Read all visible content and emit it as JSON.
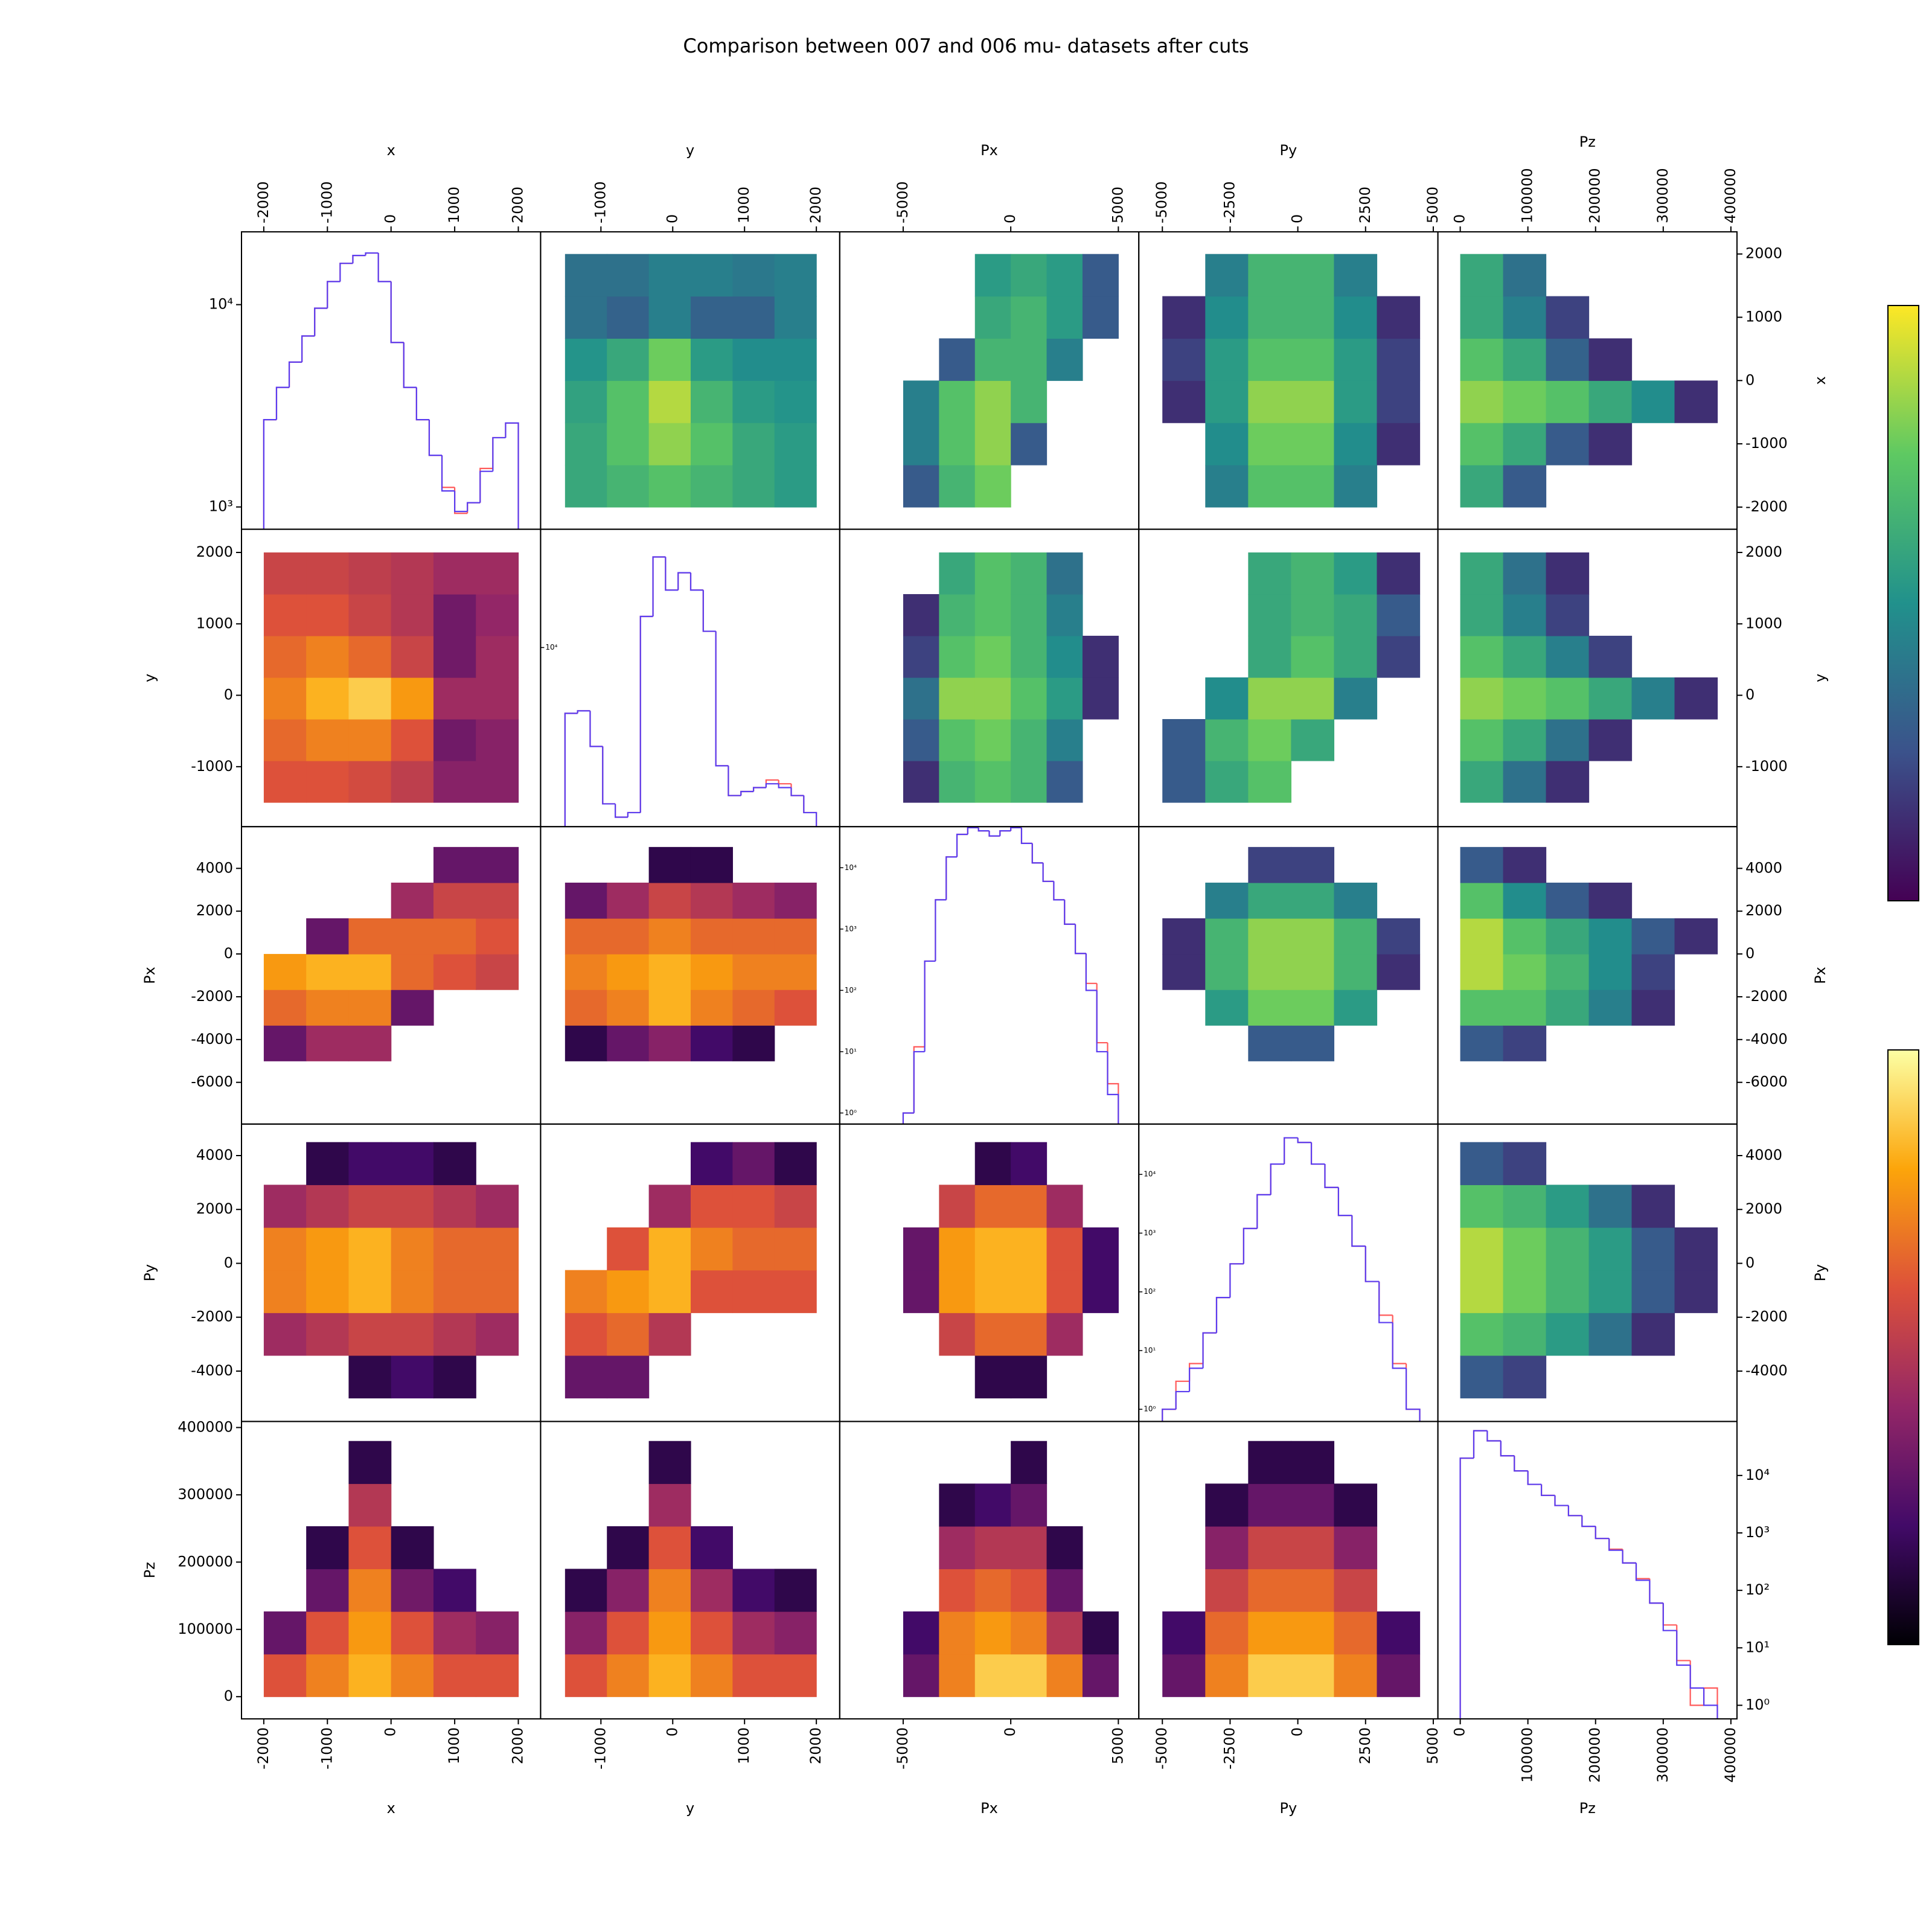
{
  "chart_data": {
    "type": "corner",
    "title": "Comparison between 007 and 006 mu- datasets after cuts",
    "upper_cmap": "viridis",
    "lower_cmap": "inferno",
    "clim": [
      0.5,
      4
    ],
    "variables": [
      {
        "name": "x",
        "lim": [
          -2350,
          2350
        ],
        "xticks": [
          -2000,
          -1000,
          0,
          1000,
          2000
        ],
        "yticks": [
          -2000,
          -1000,
          0,
          1000,
          2000
        ],
        "hist_range": [
          -2000,
          2000
        ]
      },
      {
        "name": "y",
        "lim": [
          -1840,
          2325
        ],
        "xticks": [
          -1000,
          0,
          1000,
          2000
        ],
        "yticks": [
          -1000,
          0,
          1000,
          2000
        ],
        "hist_range": [
          -1500,
          2000
        ]
      },
      {
        "name": "Px",
        "lim": [
          -7950,
          5950
        ],
        "xticks": [
          -5000,
          0,
          5000
        ],
        "yticks": [
          -6000,
          -4000,
          -2000,
          0,
          2000,
          4000
        ],
        "hist_range": [
          -5000,
          5000
        ]
      },
      {
        "name": "Py",
        "lim": [
          -5870,
          5170
        ],
        "xticks": [
          -5000,
          -2500,
          0,
          2500,
          5000
        ],
        "yticks": [
          -4000,
          -2000,
          0,
          2000,
          4000
        ],
        "hist_range": [
          -5000,
          4500
        ]
      },
      {
        "name": "Pz",
        "lim": [
          -33000,
          409000
        ],
        "xticks": [
          0,
          100000,
          200000,
          300000,
          400000
        ],
        "yticks": [
          0,
          100000,
          200000,
          300000,
          400000
        ],
        "hist_range": [
          0,
          380000
        ]
      }
    ],
    "diagonal": [
      {
        "log": true,
        "ylim": [
          776,
          22900
        ],
        "yticks": [
          {
            "value": 1000,
            "label": "10³"
          },
          {
            "value": 10000,
            "label": "10⁴"
          }
        ],
        "bins": [
          -2000,
          -1800,
          -1600,
          -1400,
          -1200,
          -1000,
          -800,
          -600,
          -400,
          -200,
          0,
          200,
          400,
          600,
          800,
          1000,
          1200,
          1400,
          1600,
          1800,
          2000
        ],
        "series": [
          {
            "color": "#ff5a5a",
            "values": [
              2700,
              3900,
              5200,
              7000,
              9600,
              13000,
              16000,
              17500,
              18000,
              13000,
              6500,
              3900,
              2700,
              1800,
              1250,
              930,
              1050,
              1550,
              2200,
              2600
            ]
          },
          {
            "color": "#5a3cf0",
            "values": [
              2700,
              3900,
              5200,
              7000,
              9600,
              13000,
              16000,
              17500,
              18000,
              13000,
              6500,
              3900,
              2700,
              1800,
              1200,
              950,
              1050,
              1500,
              2200,
              2600
            ]
          }
        ]
      },
      {
        "log": true,
        "ylim": [
          3500,
          20000
        ],
        "yticks": [
          {
            "value": 10000,
            "label": "10⁴"
          }
        ],
        "bins": [
          -1500,
          -1325,
          -1150,
          -975,
          -800,
          -625,
          -450,
          -275,
          -100,
          75,
          250,
          425,
          600,
          775,
          950,
          1125,
          1300,
          1475,
          1650,
          1825,
          2000
        ],
        "series": [
          {
            "color": "#ff5a5a",
            "values": [
              6800,
              6900,
              5600,
              4000,
              3700,
              3800,
              12000,
              17000,
              14000,
              15500,
              14000,
              11000,
              5000,
              4200,
              4300,
              4400,
              4600,
              4500,
              4200,
              3800
            ]
          },
          {
            "color": "#5a3cf0",
            "values": [
              6800,
              6900,
              5600,
              4000,
              3700,
              3800,
              12000,
              17000,
              14000,
              15500,
              14000,
              11000,
              5000,
              4200,
              4300,
              4400,
              4500,
              4400,
              4200,
              3800
            ]
          }
        ]
      },
      {
        "log": true,
        "ylim": [
          0.66,
          46800
        ],
        "yticks": [
          {
            "value": 1,
            "label": "10⁰"
          },
          {
            "value": 10,
            "label": "10¹"
          },
          {
            "value": 100,
            "label": "10²"
          },
          {
            "value": 1000,
            "label": "10³"
          },
          {
            "value": 10000,
            "label": "10⁴"
          }
        ],
        "bins": [
          -5000,
          -4500,
          -4000,
          -3500,
          -3000,
          -2500,
          -2000,
          -1500,
          -1000,
          -500,
          0,
          500,
          1000,
          1500,
          2000,
          2500,
          3000,
          3500,
          4000,
          4500,
          5000
        ],
        "series": [
          {
            "color": "#ff5a5a",
            "values": [
              1,
              12,
              300,
              3000,
              15000,
              35000,
              45000,
              40000,
              33000,
              40000,
              45000,
              25000,
              12000,
              6000,
              3000,
              1200,
              400,
              130,
              14,
              3
            ]
          },
          {
            "color": "#5a3cf0",
            "values": [
              1,
              10,
              300,
              3000,
              15000,
              35000,
              45000,
              40000,
              33000,
              40000,
              45000,
              25000,
              12000,
              6000,
              3000,
              1200,
              400,
              100,
              10,
              2
            ]
          }
        ]
      },
      {
        "log": true,
        "ylim": [
          0.62,
          72000
        ],
        "yticks": [
          {
            "value": 1,
            "label": "10⁰"
          },
          {
            "value": 10,
            "label": "10¹"
          },
          {
            "value": 100,
            "label": "10²"
          },
          {
            "value": 1000,
            "label": "10³"
          },
          {
            "value": 10000,
            "label": "10⁴"
          }
        ],
        "bins": [
          -5000,
          -4500,
          -4000,
          -3500,
          -3000,
          -2500,
          -2000,
          -1500,
          -1000,
          -500,
          0,
          500,
          1000,
          1500,
          2000,
          2500,
          3000,
          3500,
          4000,
          4500
        ],
        "series": [
          {
            "color": "#ff5a5a",
            "values": [
              1,
              3,
              6,
              20,
              80,
              300,
              1200,
              4500,
              15000,
              42000,
              35000,
              15000,
              6000,
              2000,
              600,
              150,
              40,
              6,
              1
            ]
          },
          {
            "color": "#5a3cf0",
            "values": [
              1,
              2,
              5,
              20,
              80,
              300,
              1200,
              4500,
              15000,
              42000,
              35000,
              15000,
              6000,
              2000,
              600,
              150,
              30,
              5,
              1
            ]
          }
        ]
      },
      {
        "log": true,
        "ylim": [
          0.58,
          87000
        ],
        "yticks": [
          {
            "value": 1,
            "label": "10⁰"
          },
          {
            "value": 10,
            "label": "10¹"
          },
          {
            "value": 100,
            "label": "10²"
          },
          {
            "value": 1000,
            "label": "10³"
          },
          {
            "value": 10000,
            "label": "10⁴"
          }
        ],
        "bins": [
          0,
          20000,
          40000,
          60000,
          80000,
          100000,
          120000,
          140000,
          160000,
          180000,
          200000,
          220000,
          240000,
          260000,
          280000,
          300000,
          320000,
          340000,
          360000,
          380000
        ],
        "series": [
          {
            "color": "#ff5a5a",
            "values": [
              20000,
              60000,
              40000,
              22000,
              12000,
              7000,
              4500,
              3000,
              2000,
              1300,
              800,
              520,
              300,
              160,
              60,
              25,
              6,
              1,
              2
            ]
          },
          {
            "color": "#5a3cf0",
            "values": [
              20000,
              60000,
              40000,
              22000,
              12000,
              7000,
              4500,
              3000,
              2000,
              1300,
              800,
              500,
              300,
              150,
              60,
              20,
              5,
              2,
              1
            ]
          }
        ]
      }
    ],
    "pairs": [
      {
        "a": 0,
        "b": 1,
        "density": [
          [
            2.6,
            2.6,
            2.5,
            2.3,
            1.8,
            1.8
          ],
          [
            2.8,
            3.0,
            3.0,
            2.6,
            1.6,
            1.8
          ],
          [
            3.0,
            3.4,
            3.6,
            3.2,
            2.0,
            2.0
          ],
          [
            2.8,
            3.0,
            2.8,
            2.4,
            1.6,
            2.0
          ],
          [
            2.6,
            2.6,
            2.4,
            2.2,
            1.6,
            1.9
          ],
          [
            2.4,
            2.4,
            2.3,
            2.2,
            2.0,
            2.0
          ]
        ]
      },
      {
        "a": 0,
        "b": 2,
        "density": [
          [
            1.5,
            2.0,
            2.0,
            null,
            null,
            null
          ],
          [
            2.8,
            3.0,
            3.0,
            1.5,
            null,
            null
          ],
          [
            3.2,
            3.4,
            3.4,
            2.8,
            2.6,
            2.4
          ],
          [
            null,
            1.5,
            2.8,
            2.8,
            2.8,
            2.6
          ],
          [
            null,
            null,
            null,
            2.0,
            2.4,
            2.4
          ],
          [
            null,
            null,
            null,
            null,
            1.5,
            1.5
          ]
        ]
      },
      {
        "a": 0,
        "b": 3,
        "density": [
          [
            null,
            null,
            1.0,
            1.2,
            1.0,
            null
          ],
          [
            2.0,
            2.2,
            2.4,
            2.4,
            2.2,
            2.0
          ],
          [
            3.0,
            3.2,
            3.4,
            3.0,
            2.8,
            2.8
          ],
          [
            3.0,
            3.2,
            3.4,
            3.0,
            2.8,
            2.8
          ],
          [
            2.0,
            2.2,
            2.4,
            2.4,
            2.2,
            2.0
          ],
          [
            null,
            1.0,
            1.2,
            1.2,
            1.0,
            null
          ]
        ]
      },
      {
        "a": 0,
        "b": 4,
        "density": [
          [
            2.6,
            3.0,
            3.4,
            3.0,
            2.6,
            2.6
          ],
          [
            1.5,
            2.6,
            3.2,
            2.6,
            2.0,
            1.8
          ],
          [
            null,
            1.5,
            3.0,
            1.6,
            1.2,
            null
          ],
          [
            null,
            1.0,
            2.6,
            1.0,
            null,
            null
          ],
          [
            null,
            null,
            2.2,
            null,
            null,
            null
          ],
          [
            null,
            null,
            1.0,
            null,
            null,
            null
          ]
        ]
      },
      {
        "a": 1,
        "b": 2,
        "density": [
          [
            1.0,
            1.5,
            1.8,
            1.2,
            1.0,
            null
          ],
          [
            2.8,
            3.0,
            3.4,
            3.0,
            2.8,
            2.6
          ],
          [
            3.0,
            3.2,
            3.4,
            3.2,
            3.0,
            3.0
          ],
          [
            2.8,
            2.8,
            3.0,
            2.8,
            2.8,
            2.8
          ],
          [
            1.5,
            2.0,
            2.4,
            2.2,
            2.0,
            1.8
          ],
          [
            null,
            null,
            1.0,
            1.0,
            null,
            null
          ]
        ]
      },
      {
        "a": 1,
        "b": 3,
        "density": [
          [
            1.5,
            1.5,
            null,
            null,
            null,
            null
          ],
          [
            2.6,
            2.8,
            2.2,
            null,
            null,
            null
          ],
          [
            3.0,
            3.2,
            3.4,
            2.6,
            2.6,
            2.6
          ],
          [
            null,
            2.6,
            3.4,
            3.0,
            2.8,
            2.8
          ],
          [
            null,
            null,
            2.0,
            2.6,
            2.6,
            2.4
          ],
          [
            null,
            null,
            null,
            1.2,
            1.5,
            1.0
          ]
        ]
      },
      {
        "a": 1,
        "b": 4,
        "density": [
          [
            2.6,
            3.0,
            3.4,
            3.0,
            2.6,
            2.6
          ],
          [
            1.8,
            2.6,
            3.2,
            2.6,
            2.0,
            1.8
          ],
          [
            1.0,
            1.8,
            3.0,
            2.0,
            1.2,
            1.0
          ],
          [
            null,
            1.0,
            2.6,
            1.2,
            null,
            null
          ],
          [
            null,
            null,
            2.0,
            null,
            null,
            null
          ],
          [
            null,
            null,
            1.0,
            null,
            null,
            null
          ]
        ]
      },
      {
        "a": 2,
        "b": 3,
        "density": [
          [
            null,
            null,
            1.0,
            1.0,
            null,
            null
          ],
          [
            null,
            2.4,
            2.8,
            2.8,
            2.0,
            null
          ],
          [
            1.5,
            3.2,
            3.4,
            3.4,
            2.6,
            1.2
          ],
          [
            1.5,
            3.2,
            3.4,
            3.4,
            2.6,
            1.2
          ],
          [
            null,
            2.4,
            2.8,
            2.8,
            2.0,
            null
          ],
          [
            null,
            null,
            1.0,
            1.2,
            null,
            null
          ]
        ]
      },
      {
        "a": 2,
        "b": 4,
        "density": [
          [
            1.5,
            3.0,
            3.6,
            3.6,
            3.0,
            1.5
          ],
          [
            1.2,
            3.0,
            3.2,
            3.0,
            2.2,
            1.0
          ],
          [
            null,
            2.6,
            2.8,
            2.6,
            1.5,
            null
          ],
          [
            null,
            2.0,
            2.2,
            2.2,
            1.0,
            null
          ],
          [
            null,
            1.0,
            1.2,
            1.5,
            null,
            null
          ],
          [
            null,
            null,
            null,
            1.0,
            null,
            null
          ]
        ]
      },
      {
        "a": 3,
        "b": 4,
        "density": [
          [
            1.5,
            3.0,
            3.6,
            3.6,
            3.0,
            1.5
          ],
          [
            1.2,
            2.8,
            3.2,
            3.2,
            2.8,
            1.2
          ],
          [
            null,
            2.4,
            2.8,
            2.8,
            2.4,
            null
          ],
          [
            null,
            1.8,
            2.4,
            2.4,
            1.8,
            null
          ],
          [
            null,
            1.0,
            1.5,
            1.5,
            1.0,
            null
          ],
          [
            null,
            null,
            1.0,
            1.0,
            null,
            null
          ]
        ]
      }
    ]
  }
}
